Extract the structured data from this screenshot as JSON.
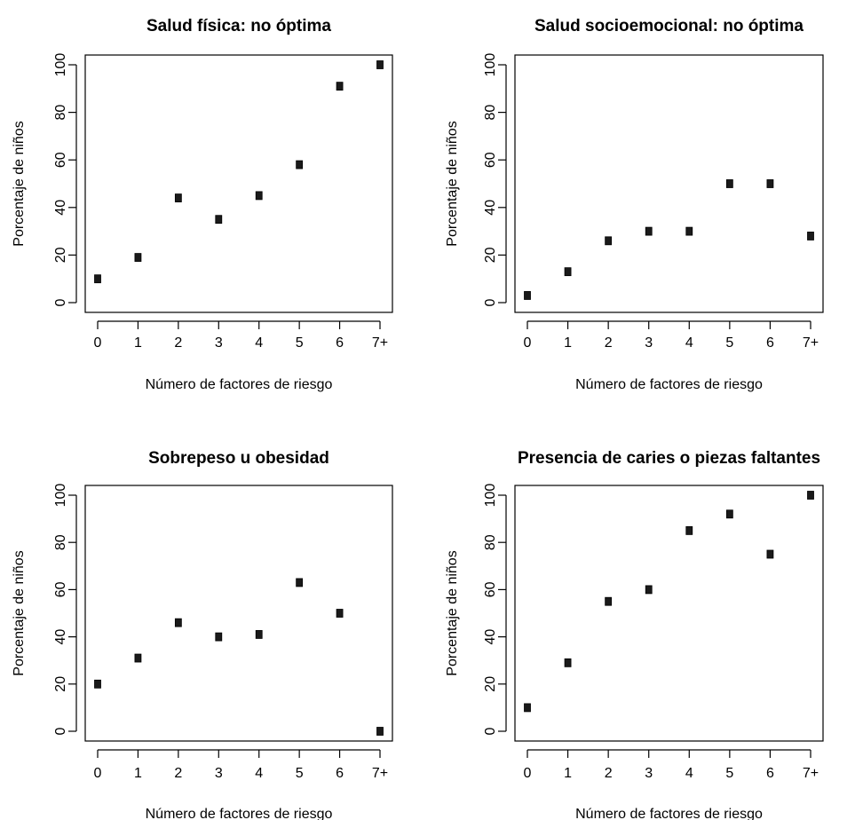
{
  "chart_data": [
    {
      "type": "scatter",
      "title": "Salud física: no óptima",
      "xlabel": "Número de factores de riesgo",
      "ylabel": "Porcentaje de niños",
      "categories": [
        "0",
        "1",
        "2",
        "3",
        "4",
        "5",
        "6",
        "7+"
      ],
      "values": [
        10,
        19,
        44,
        35,
        45,
        58,
        91,
        100
      ],
      "ylim": [
        0,
        100
      ],
      "yticks": [
        "0",
        "20",
        "40",
        "60",
        "80",
        "100"
      ]
    },
    {
      "type": "scatter",
      "title": "Salud socioemocional: no óptima",
      "xlabel": "Número de factores de riesgo",
      "ylabel": "Porcentaje de niños",
      "categories": [
        "0",
        "1",
        "2",
        "3",
        "4",
        "5",
        "6",
        "7+"
      ],
      "values": [
        3,
        13,
        26,
        30,
        30,
        50,
        50,
        28
      ],
      "ylim": [
        0,
        100
      ],
      "yticks": [
        "0",
        "20",
        "40",
        "60",
        "80",
        "100"
      ]
    },
    {
      "type": "scatter",
      "title": "Sobrepeso u obesidad",
      "xlabel": "Número de factores de riesgo",
      "ylabel": "Porcentaje de niños",
      "categories": [
        "0",
        "1",
        "2",
        "3",
        "4",
        "5",
        "6",
        "7+"
      ],
      "values": [
        20,
        31,
        46,
        40,
        41,
        63,
        50,
        0
      ],
      "ylim": [
        0,
        100
      ],
      "yticks": [
        "0",
        "20",
        "40",
        "60",
        "80",
        "100"
      ]
    },
    {
      "type": "scatter",
      "title": "Presencia de caries o piezas faltantes",
      "xlabel": "Número de factores de riesgo",
      "ylabel": "Porcentaje de niños",
      "categories": [
        "0",
        "1",
        "2",
        "3",
        "4",
        "5",
        "6",
        "7+"
      ],
      "values": [
        10,
        29,
        55,
        60,
        85,
        92,
        75,
        100
      ],
      "ylim": [
        0,
        100
      ],
      "yticks": [
        "0",
        "20",
        "40",
        "60",
        "80",
        "100"
      ]
    }
  ]
}
